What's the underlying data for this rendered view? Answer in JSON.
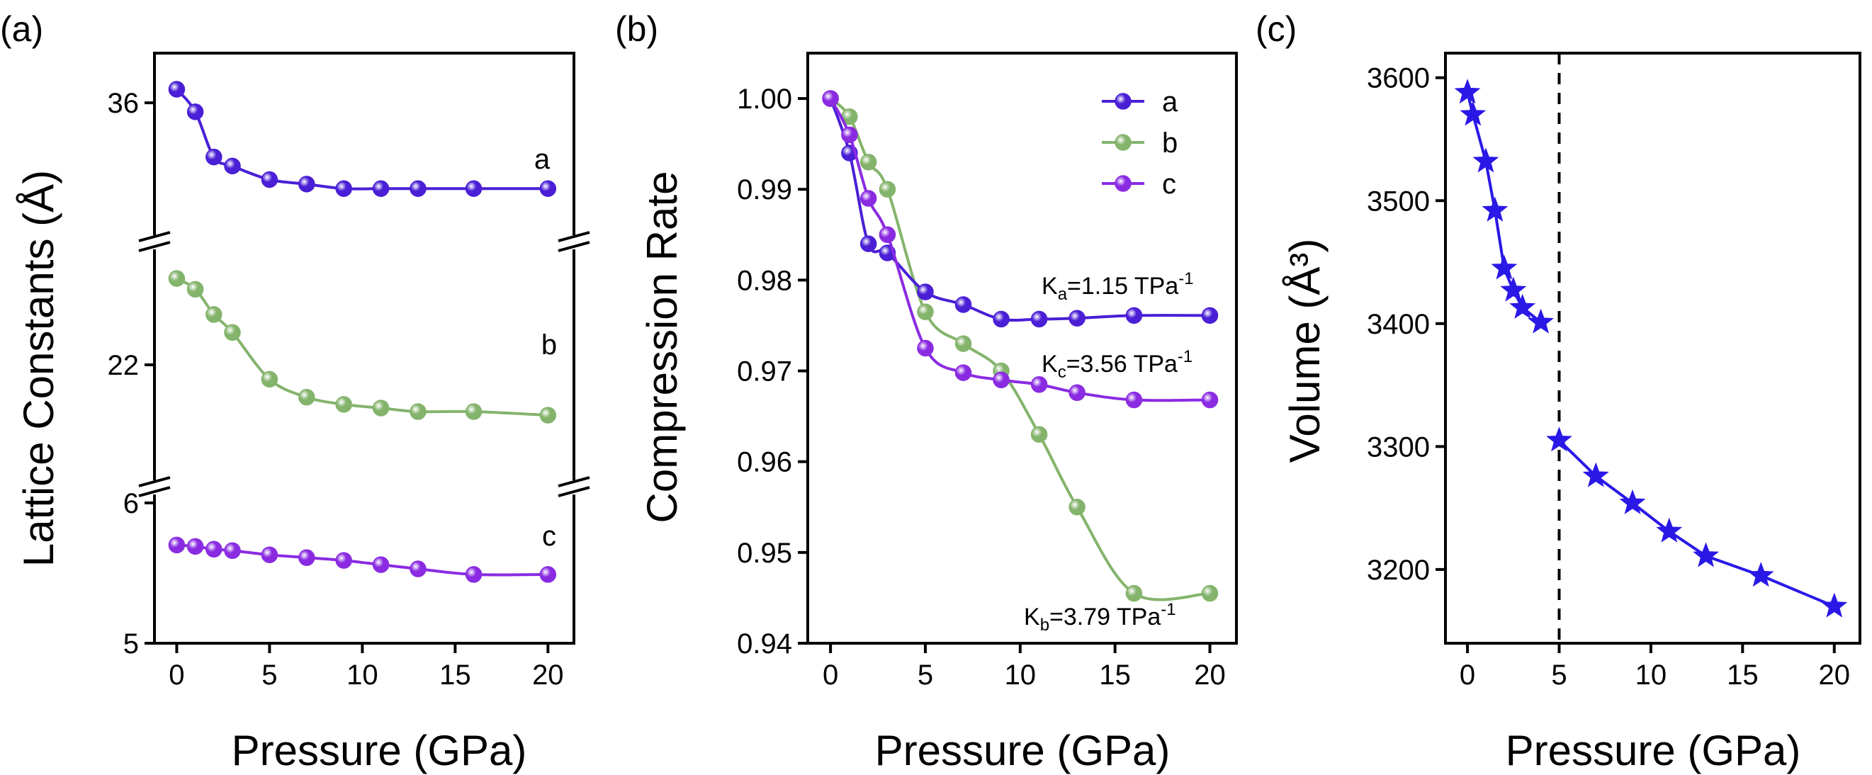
{
  "colors": {
    "a": "#4a1fd6",
    "b": "#84b46c",
    "c": "#8a2be2",
    "v": "#2a18e6"
  },
  "chart_data": [
    {
      "panel": "(a)",
      "type": "scatter",
      "xlabel": "Pressure (GPa)",
      "ylabel": "Lattice Constants (Å)",
      "xlim": [
        -1.2,
        21.4
      ],
      "xticks": [
        0,
        5,
        10,
        15,
        20
      ],
      "yticks": [
        {
          "label": "36"
        },
        {
          "label": "22"
        },
        {
          "label": "6"
        },
        {
          "label": "5"
        }
      ],
      "series": [
        {
          "key": "a",
          "label": "a",
          "x": [
            0,
            1,
            2,
            3,
            5,
            7,
            9,
            11,
            13,
            16,
            20
          ],
          "y": [
            36.3,
            35.8,
            34.8,
            34.6,
            34.3,
            34.2,
            34.1,
            34.1,
            34.1,
            34.1,
            34.1
          ]
        },
        {
          "key": "b",
          "label": "b",
          "x": [
            0,
            1,
            2,
            3,
            5,
            7,
            9,
            11,
            13,
            16,
            20
          ],
          "y": [
            24.4,
            24.1,
            23.4,
            22.9,
            21.6,
            21.1,
            20.9,
            20.8,
            20.7,
            20.7,
            20.6
          ]
        },
        {
          "key": "c",
          "label": "c",
          "x": [
            0,
            1,
            2,
            3,
            5,
            7,
            9,
            11,
            13,
            16,
            20
          ],
          "y": [
            5.7,
            5.69,
            5.67,
            5.66,
            5.63,
            5.61,
            5.59,
            5.56,
            5.53,
            5.49,
            5.49
          ]
        }
      ]
    },
    {
      "panel": "(b)",
      "type": "scatter",
      "xlabel": "Pressure (GPa)",
      "ylabel": "Compression Rate",
      "xlim": [
        -1.2,
        21.4
      ],
      "ylim": [
        0.94,
        1.005
      ],
      "xticks": [
        0,
        5,
        10,
        15,
        20
      ],
      "yticks": [
        0.94,
        0.95,
        0.96,
        0.97,
        0.98,
        0.99,
        1.0
      ],
      "ytick_labels": [
        "0.94",
        "0.95",
        "0.96",
        "0.97",
        "0.98",
        "0.99",
        "1.00"
      ],
      "legend": [
        "a",
        "b",
        "c"
      ],
      "legend_position": "top-right",
      "series": [
        {
          "key": "a",
          "name": "a",
          "x": [
            0,
            1,
            2,
            3,
            5,
            7,
            9,
            11,
            13,
            16,
            20
          ],
          "y": [
            1.0,
            0.994,
            0.984,
            0.983,
            0.9787,
            0.9773,
            0.9757,
            0.9757,
            0.9758,
            0.9761,
            0.9761
          ]
        },
        {
          "key": "b",
          "name": "b",
          "x": [
            0,
            1,
            2,
            3,
            5,
            7,
            9,
            11,
            13,
            16,
            20
          ],
          "y": [
            1.0,
            0.998,
            0.993,
            0.99,
            0.9765,
            0.973,
            0.97,
            0.963,
            0.955,
            0.9455,
            0.9455
          ]
        },
        {
          "key": "c",
          "name": "c",
          "x": [
            0,
            1,
            2,
            3,
            5,
            7,
            9,
            11,
            13,
            16,
            20
          ],
          "y": [
            1.0,
            0.996,
            0.989,
            0.985,
            0.9725,
            0.9698,
            0.969,
            0.9685,
            0.9676,
            0.9668,
            0.9668
          ]
        }
      ],
      "annotations": [
        {
          "text": "K",
          "sub": "a",
          "rest": "=1.15 TPa",
          "sup": "-1"
        },
        {
          "text": "K",
          "sub": "c",
          "rest": "=3.56 TPa",
          "sup": "-1"
        },
        {
          "text": "K",
          "sub": "b",
          "rest": "=3.79 TPa",
          "sup": "-1"
        }
      ]
    },
    {
      "panel": "(c)",
      "type": "line",
      "xlabel": "Pressure (GPa)",
      "ylabel": "Volume (Å³)",
      "xlim": [
        -1.2,
        21.4
      ],
      "ylim": [
        3140,
        3620
      ],
      "xticks": [
        0,
        5,
        10,
        15,
        20
      ],
      "yticks": [
        3200,
        3300,
        3400,
        3500,
        3600
      ],
      "ytick_labels": [
        "3200",
        "3300",
        "3400",
        "3500",
        "3600"
      ],
      "vline": 5,
      "series": [
        {
          "key": "v1",
          "x": [
            0,
            0.3,
            1,
            1.5,
            2,
            2.5,
            3,
            4
          ],
          "y": [
            3588,
            3570,
            3532,
            3492,
            3445,
            3427,
            3413,
            3401
          ]
        },
        {
          "key": "v2",
          "x": [
            5,
            7,
            9,
            11,
            13,
            16,
            20
          ],
          "y": [
            3305,
            3276,
            3254,
            3231,
            3211,
            3195,
            3170
          ]
        }
      ]
    }
  ]
}
